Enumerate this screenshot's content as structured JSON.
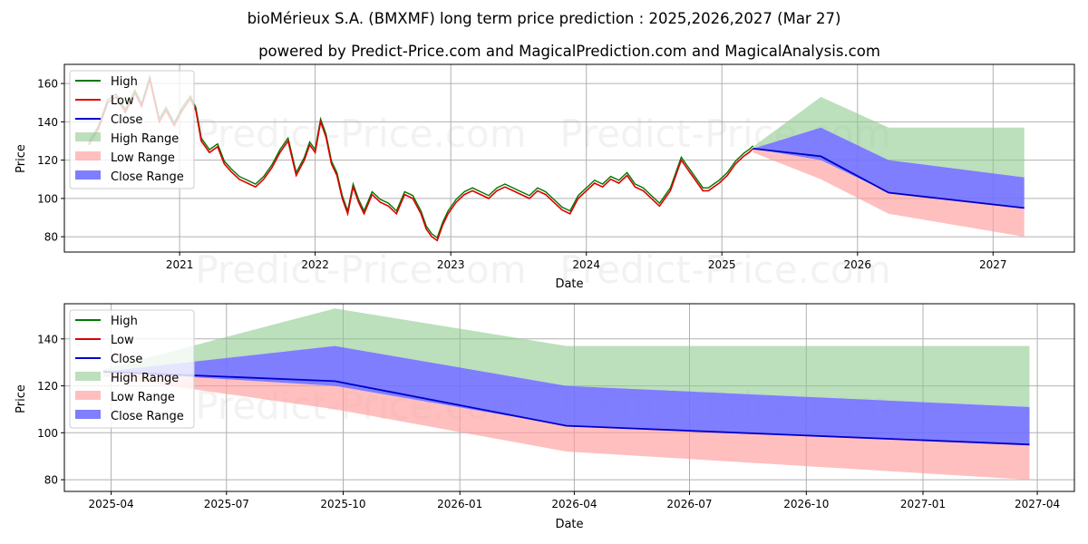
{
  "title": "bioMérieux S.A. (BMXMF) long term price prediction : 2025,2026,2027 (Mar 27)",
  "subtitle": "powered by Predict-Price.com and MagicalPrediction.com and MagicalAnalysis.com",
  "watermark": "Predict-Price.com",
  "colors": {
    "high": "#007700",
    "low": "#dd0000",
    "close": "#0000cc",
    "high_range": "#8fc98f",
    "low_range": "#ff9d9d",
    "close_range": "#7070ff",
    "grid": "#b0b0b0"
  },
  "legend": {
    "high": "High",
    "low": "Low",
    "close": "Close",
    "high_range": "High Range",
    "low_range": "Low Range",
    "close_range": "Close Range"
  },
  "chart_data": [
    {
      "type": "line",
      "name": "long-term",
      "xlabel": "Date",
      "ylabel": "Price",
      "xlim": [
        2020.15,
        2027.6
      ],
      "ylim": [
        72,
        170
      ],
      "xticks": [
        {
          "value": 2021,
          "label": "2021"
        },
        {
          "value": 2022,
          "label": "2022"
        },
        {
          "value": 2023,
          "label": "2023"
        },
        {
          "value": 2024,
          "label": "2024"
        },
        {
          "value": 2025,
          "label": "2025"
        },
        {
          "value": 2026,
          "label": "2026"
        },
        {
          "value": 2027,
          "label": "2027"
        }
      ],
      "yticks": [
        80,
        100,
        120,
        140,
        160
      ],
      "history": [
        [
          2020.33,
          128
        ],
        [
          2020.4,
          136
        ],
        [
          2020.47,
          150
        ],
        [
          2020.53,
          153
        ],
        [
          2020.6,
          145
        ],
        [
          2020.67,
          155
        ],
        [
          2020.72,
          148
        ],
        [
          2020.78,
          162
        ],
        [
          2020.85,
          140
        ],
        [
          2020.9,
          146
        ],
        [
          2020.96,
          138
        ],
        [
          2021.02,
          146
        ],
        [
          2021.08,
          152
        ],
        [
          2021.12,
          146
        ],
        [
          2021.16,
          130
        ],
        [
          2021.22,
          124
        ],
        [
          2021.28,
          127
        ],
        [
          2021.33,
          118
        ],
        [
          2021.38,
          114
        ],
        [
          2021.44,
          110
        ],
        [
          2021.5,
          108
        ],
        [
          2021.56,
          106
        ],
        [
          2021.62,
          110
        ],
        [
          2021.68,
          116
        ],
        [
          2021.74,
          124
        ],
        [
          2021.8,
          130
        ],
        [
          2021.86,
          112
        ],
        [
          2021.92,
          120
        ],
        [
          2021.96,
          128
        ],
        [
          2022.0,
          124
        ],
        [
          2022.04,
          140
        ],
        [
          2022.08,
          132
        ],
        [
          2022.12,
          118
        ],
        [
          2022.16,
          112
        ],
        [
          2022.2,
          100
        ],
        [
          2022.24,
          92
        ],
        [
          2022.28,
          106
        ],
        [
          2022.32,
          98
        ],
        [
          2022.36,
          92
        ],
        [
          2022.42,
          102
        ],
        [
          2022.48,
          98
        ],
        [
          2022.54,
          96
        ],
        [
          2022.6,
          92
        ],
        [
          2022.66,
          102
        ],
        [
          2022.72,
          100
        ],
        [
          2022.78,
          92
        ],
        [
          2022.82,
          84
        ],
        [
          2022.86,
          80
        ],
        [
          2022.9,
          78
        ],
        [
          2022.94,
          86
        ],
        [
          2022.98,
          92
        ],
        [
          2023.04,
          98
        ],
        [
          2023.1,
          102
        ],
        [
          2023.16,
          104
        ],
        [
          2023.22,
          102
        ],
        [
          2023.28,
          100
        ],
        [
          2023.34,
          104
        ],
        [
          2023.4,
          106
        ],
        [
          2023.46,
          104
        ],
        [
          2023.52,
          102
        ],
        [
          2023.58,
          100
        ],
        [
          2023.64,
          104
        ],
        [
          2023.7,
          102
        ],
        [
          2023.76,
          98
        ],
        [
          2023.82,
          94
        ],
        [
          2023.88,
          92
        ],
        [
          2023.94,
          100
        ],
        [
          2024.0,
          104
        ],
        [
          2024.06,
          108
        ],
        [
          2024.12,
          106
        ],
        [
          2024.18,
          110
        ],
        [
          2024.24,
          108
        ],
        [
          2024.3,
          112
        ],
        [
          2024.36,
          106
        ],
        [
          2024.42,
          104
        ],
        [
          2024.48,
          100
        ],
        [
          2024.54,
          96
        ],
        [
          2024.58,
          100
        ],
        [
          2024.62,
          104
        ],
        [
          2024.66,
          112
        ],
        [
          2024.7,
          120
        ],
        [
          2024.74,
          116
        ],
        [
          2024.78,
          112
        ],
        [
          2024.82,
          108
        ],
        [
          2024.86,
          104
        ],
        [
          2024.9,
          104
        ],
        [
          2024.94,
          106
        ],
        [
          2024.98,
          108
        ],
        [
          2025.04,
          112
        ],
        [
          2025.1,
          118
        ],
        [
          2025.16,
          122
        ],
        [
          2025.2,
          124
        ],
        [
          2025.23,
          126
        ]
      ],
      "forecast": [
        {
          "label": "2025-03-27",
          "x": 2025.23,
          "high": 127,
          "low": 124,
          "close": 126,
          "close_hi": 126,
          "close_lo": 126
        },
        {
          "label": "2025-09-25",
          "x": 2025.73,
          "high": 153,
          "low": 110,
          "close": 122,
          "close_hi": 137,
          "close_lo": 120
        },
        {
          "label": "2026-03-27",
          "x": 2026.23,
          "high": 137,
          "low": 92,
          "close": 103,
          "close_hi": 120,
          "close_lo": 103
        },
        {
          "label": "2027-03-27",
          "x": 2027.23,
          "high": 137,
          "low": 80,
          "close": 95,
          "close_hi": 111,
          "close_lo": 95
        }
      ]
    },
    {
      "type": "line",
      "name": "forecast-zoom",
      "xlabel": "Date",
      "ylabel": "Price",
      "xlim": [
        2025.146,
        2027.327
      ],
      "ylim": [
        75,
        155
      ],
      "xticks": [
        {
          "value": 2025.247,
          "label": "2025-04"
        },
        {
          "value": 2025.496,
          "label": "2025-07"
        },
        {
          "value": 2025.748,
          "label": "2025-10"
        },
        {
          "value": 2026.0,
          "label": "2026-01"
        },
        {
          "value": 2026.247,
          "label": "2026-04"
        },
        {
          "value": 2026.496,
          "label": "2026-07"
        },
        {
          "value": 2026.748,
          "label": "2026-10"
        },
        {
          "value": 2027.0,
          "label": "2027-01"
        },
        {
          "value": 2027.247,
          "label": "2027-04"
        }
      ],
      "yticks": [
        80,
        100,
        120,
        140
      ],
      "forecast": [
        {
          "label": "2025-03-27",
          "x": 2025.23,
          "high": 127,
          "low": 124,
          "close": 126,
          "close_hi": 126,
          "close_lo": 126
        },
        {
          "label": "2025-09-25",
          "x": 2025.73,
          "high": 153,
          "low": 110,
          "close": 122,
          "close_hi": 137,
          "close_lo": 120
        },
        {
          "label": "2026-03-27",
          "x": 2026.23,
          "high": 137,
          "low": 92,
          "close": 103,
          "close_hi": 120,
          "close_lo": 103
        },
        {
          "label": "2027-03-27",
          "x": 2027.23,
          "high": 137,
          "low": 80,
          "close": 95,
          "close_hi": 111,
          "close_lo": 95
        }
      ]
    }
  ]
}
